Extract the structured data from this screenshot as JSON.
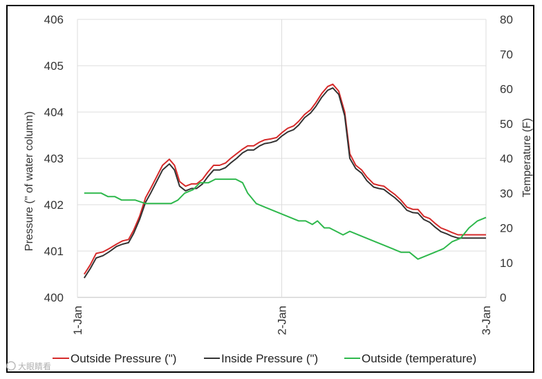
{
  "watermark": "大眼睛看",
  "chart_data": {
    "type": "line",
    "title": "",
    "xlabel": "",
    "ylabel": "Pressure (\" of water column)",
    "y2label": "Temperature (F)",
    "ylim": [
      400,
      406
    ],
    "y2lim": [
      0,
      80
    ],
    "yticks": [
      400,
      401,
      402,
      403,
      404,
      405,
      406
    ],
    "y2ticks": [
      0,
      10,
      20,
      30,
      40,
      50,
      60,
      70,
      80
    ],
    "xlim": [
      0,
      48
    ],
    "xticks": [
      {
        "x": 0,
        "label": "1-Jan"
      },
      {
        "x": 24,
        "label": "2-Jan"
      },
      {
        "x": 48,
        "label": "3-Jan"
      }
    ],
    "grid": true,
    "legend_position": "bottom",
    "series": [
      {
        "name": "Outside Pressure (\")",
        "color": "#d62a2a",
        "axis": "left",
        "x": [
          0.8,
          1.5,
          2.2,
          3,
          3.7,
          4.6,
          5.3,
          6,
          6.6,
          7.3,
          8,
          8.6,
          9.3,
          10,
          10.8,
          11.4,
          12,
          12.7,
          13.4,
          14,
          14.7,
          15.3,
          16,
          16.7,
          17.4,
          18,
          18.7,
          19.4,
          20,
          20.7,
          21.4,
          22,
          22.7,
          23.4,
          24,
          24.7,
          25.4,
          26,
          26.7,
          27.4,
          28,
          28.7,
          29.4,
          30,
          30.7,
          31.4,
          32,
          32.7,
          33.4,
          34,
          34.8,
          35.4,
          36,
          36.7,
          37.3,
          38,
          38.7,
          39.4,
          40,
          40.7,
          41.4,
          42,
          42.7,
          43.4,
          44,
          44.7,
          45.4,
          46,
          46.7,
          47.4,
          48
        ],
        "values": [
          400.5,
          400.7,
          400.95,
          400.98,
          401.05,
          401.15,
          401.22,
          401.25,
          401.45,
          401.75,
          402.15,
          402.35,
          402.6,
          402.85,
          402.98,
          402.85,
          402.5,
          402.4,
          402.45,
          402.45,
          402.55,
          402.7,
          402.85,
          402.85,
          402.9,
          403.0,
          403.1,
          403.2,
          403.27,
          403.27,
          403.35,
          403.4,
          403.42,
          403.45,
          403.55,
          403.65,
          403.7,
          403.8,
          403.95,
          404.05,
          404.2,
          404.4,
          404.55,
          404.6,
          404.45,
          404.0,
          403.1,
          402.85,
          402.75,
          402.6,
          402.45,
          402.42,
          402.4,
          402.3,
          402.22,
          402.1,
          401.95,
          401.9,
          401.9,
          401.75,
          401.7,
          401.6,
          401.5,
          401.45,
          401.4,
          401.35,
          401.35,
          401.35,
          401.35,
          401.35,
          401.35
        ]
      },
      {
        "name": "Inside Pressure (\")",
        "color": "#333333",
        "axis": "left",
        "x": [
          0.8,
          1.5,
          2.2,
          3,
          3.7,
          4.6,
          5.3,
          6,
          6.6,
          7.3,
          8,
          8.6,
          9.3,
          10,
          10.8,
          11.4,
          12,
          12.7,
          13.4,
          14,
          14.7,
          15.3,
          16,
          16.7,
          17.4,
          18,
          18.7,
          19.4,
          20,
          20.7,
          21.4,
          22,
          22.7,
          23.4,
          24,
          24.7,
          25.4,
          26,
          26.7,
          27.4,
          28,
          28.7,
          29.4,
          30,
          30.7,
          31.4,
          32,
          32.7,
          33.4,
          34,
          34.8,
          35.4,
          36,
          36.7,
          37.3,
          38,
          38.7,
          39.4,
          40,
          40.7,
          41.4,
          42,
          42.7,
          43.4,
          44,
          44.7,
          45.4,
          46,
          46.7,
          47.4,
          48
        ],
        "values": [
          400.42,
          400.62,
          400.85,
          400.9,
          400.98,
          401.1,
          401.15,
          401.18,
          401.38,
          401.68,
          402.05,
          402.25,
          402.5,
          402.75,
          402.88,
          402.75,
          402.4,
          402.3,
          402.35,
          402.35,
          402.45,
          402.6,
          402.75,
          402.75,
          402.8,
          402.9,
          403.0,
          403.12,
          403.18,
          403.18,
          403.27,
          403.32,
          403.34,
          403.38,
          403.48,
          403.57,
          403.62,
          403.72,
          403.88,
          403.98,
          404.12,
          404.32,
          404.47,
          404.52,
          404.38,
          403.92,
          403.0,
          402.78,
          402.68,
          402.52,
          402.38,
          402.35,
          402.33,
          402.23,
          402.15,
          402.03,
          401.88,
          401.83,
          401.82,
          401.68,
          401.62,
          401.52,
          401.42,
          401.37,
          401.32,
          401.28,
          401.28,
          401.28,
          401.28,
          401.28,
          401.28
        ]
      },
      {
        "name": "Outside (temperature)",
        "color": "#2eb84c",
        "axis": "right",
        "x": [
          0.8,
          2,
          2.8,
          3.6,
          4.4,
          5.2,
          6,
          6.8,
          8,
          9.2,
          10,
          11,
          11.8,
          12.6,
          13.6,
          14.4,
          15.4,
          16.2,
          17,
          17.8,
          18.6,
          19.4,
          20,
          21,
          22,
          23,
          24,
          25,
          26,
          26.8,
          27.6,
          28.2,
          29,
          29.6,
          30.4,
          31.2,
          32,
          33,
          34,
          35,
          36,
          37,
          38,
          39,
          40,
          41,
          42,
          43,
          44,
          45,
          46,
          47,
          48
        ],
        "values": [
          30,
          30,
          30,
          29,
          29,
          28,
          28,
          28,
          27,
          27,
          27,
          27,
          28,
          30,
          31,
          33,
          33,
          34,
          34,
          34,
          34,
          33,
          30,
          27,
          26,
          25,
          24,
          23,
          22,
          22,
          21,
          22,
          20,
          20,
          19,
          18,
          19,
          18,
          17,
          16,
          15,
          14,
          13,
          13,
          11,
          12,
          13,
          14,
          16,
          17,
          20,
          22,
          23
        ]
      }
    ]
  }
}
